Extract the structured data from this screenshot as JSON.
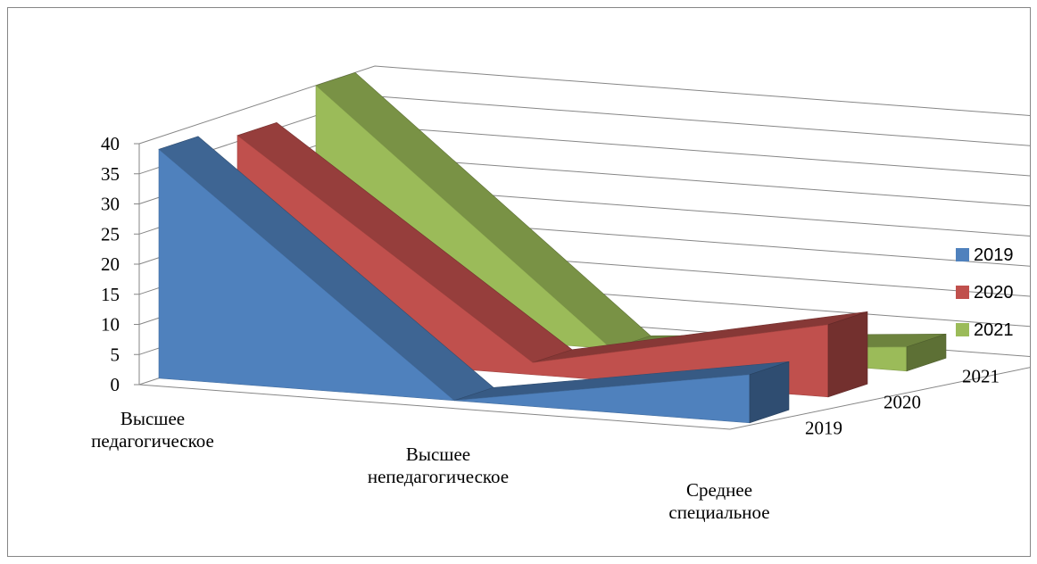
{
  "chart_data": {
    "type": "area",
    "categories": [
      "Высшее педагогическое",
      "Высшее непедагогическое",
      "Среднее специальное"
    ],
    "series": [
      {
        "name": "2019",
        "values": [
          38,
          0,
          8
        ],
        "color": "#4f81bd"
      },
      {
        "name": "2020",
        "values": [
          36,
          2,
          12
        ],
        "color": "#c0504d"
      },
      {
        "name": "2021",
        "values": [
          40,
          0,
          4
        ],
        "color": "#9bbb59"
      }
    ],
    "depth_labels": [
      "2019",
      "2020",
      "2021"
    ],
    "yticks": [
      "0",
      "5",
      "10",
      "15",
      "20",
      "25",
      "30",
      "35",
      "40"
    ],
    "ylim": [
      0,
      40
    ],
    "gridlines": true,
    "legend": {
      "position": "right",
      "items": [
        "2019",
        "2020",
        "2021"
      ]
    },
    "title": "",
    "xlabel": "",
    "ylabel": ""
  }
}
